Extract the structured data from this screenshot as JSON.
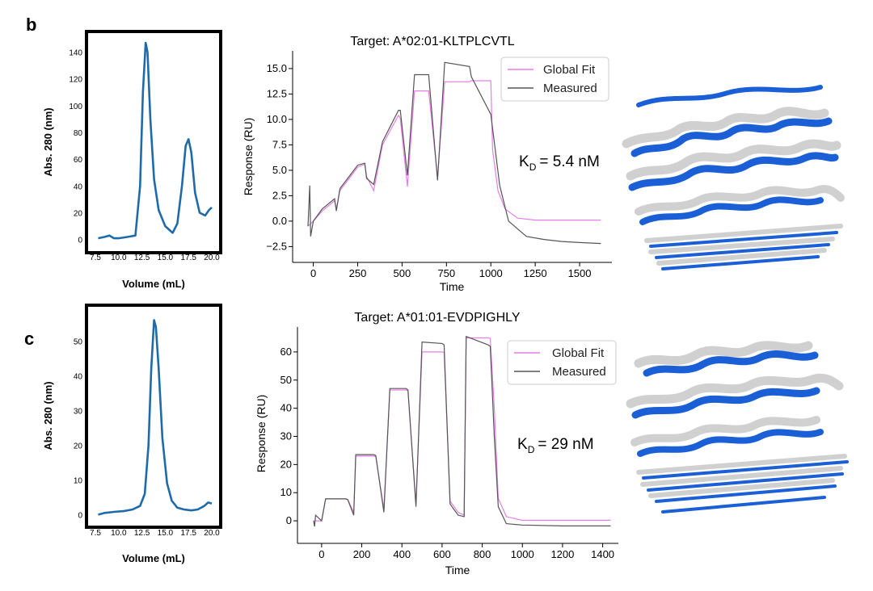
{
  "panels": [
    {
      "letter": "b",
      "kd_label": "K",
      "kd_sub": "D",
      "kd_value": "= 5.4 nM"
    },
    {
      "letter": "c",
      "kd_label": "K",
      "kd_sub": "D",
      "kd_value": "= 29 nM"
    }
  ],
  "colors": {
    "sec_line": "#1f6aa8",
    "fit_line": "#e67fe6",
    "measured_line": "#555555",
    "structure_blue": "#1a5fd6",
    "structure_grey": "#d0d0d0"
  },
  "chart_data": [
    {
      "id": "sec-b",
      "type": "line",
      "title": "",
      "xlabel": "Volume (mL)",
      "ylabel": "Abs. 280 (nm)",
      "xlim": [
        7.5,
        20.0
      ],
      "ylim": [
        -5,
        150
      ],
      "xticks": [
        "7.5",
        "10.0",
        "12.5",
        "15.0",
        "17.5",
        "20.0"
      ],
      "yticks": [
        "0",
        "20",
        "40",
        "60",
        "80",
        "100",
        "120",
        "140"
      ],
      "series": [
        {
          "name": "SEC trace",
          "x": [
            7.8,
            8.5,
            9.0,
            9.5,
            10.0,
            11.0,
            11.8,
            12.3,
            12.6,
            12.9,
            13.1,
            13.4,
            13.8,
            14.3,
            15.0,
            15.8,
            16.3,
            16.8,
            17.2,
            17.5,
            17.8,
            18.2,
            18.7,
            19.3,
            19.7,
            20.0
          ],
          "y": [
            1,
            2,
            3,
            1,
            1,
            2,
            3,
            40,
            110,
            147,
            140,
            90,
            45,
            22,
            10,
            5,
            12,
            40,
            70,
            75,
            65,
            35,
            20,
            18,
            22,
            24
          ]
        }
      ]
    },
    {
      "id": "spr-b",
      "type": "line",
      "title": "Target: A*02:01-KLTPLCVTL",
      "xlabel": "Time",
      "ylabel": "Response (RU)",
      "xlim": [
        -80,
        1650
      ],
      "ylim": [
        -3.5,
        16.5
      ],
      "xticks": [
        "0",
        "250",
        "500",
        "750",
        "1000",
        "1250",
        "1500"
      ],
      "yticks": [
        "−2.5",
        "0.0",
        "2.5",
        "5.0",
        "7.5",
        "10.0",
        "12.5",
        "15.0"
      ],
      "legend": [
        "Global Fit",
        "Measured"
      ],
      "legend_position": "top-right",
      "series": [
        {
          "name": "Global Fit",
          "x": [
            -30,
            0,
            50,
            120,
            130,
            150,
            250,
            290,
            300,
            340,
            390,
            480,
            490,
            530,
            570,
            640,
            650,
            700,
            740,
            880,
            890,
            1000,
            1010,
            1040,
            1080,
            1150,
            1250,
            1620
          ],
          "y": [
            -0.5,
            0.0,
            1.0,
            2.0,
            1.2,
            3.0,
            5.3,
            5.6,
            4.4,
            3.0,
            7.5,
            10.4,
            10.1,
            3.4,
            12.8,
            12.8,
            12.8,
            4.3,
            13.7,
            13.7,
            13.8,
            13.8,
            7.0,
            3.0,
            1.2,
            0.3,
            0.1,
            0.1
          ]
        },
        {
          "name": "Measured",
          "x": [
            -30,
            -20,
            -15,
            0,
            50,
            120,
            130,
            150,
            250,
            290,
            300,
            340,
            390,
            480,
            490,
            530,
            570,
            640,
            650,
            700,
            740,
            880,
            890,
            1000,
            1050,
            1100,
            1200,
            1300,
            1400,
            1500,
            1620
          ],
          "y": [
            -0.5,
            3.5,
            -1.5,
            0.0,
            1.2,
            2.2,
            1.0,
            3.2,
            5.5,
            5.7,
            4.2,
            3.6,
            7.8,
            10.9,
            10.9,
            4.5,
            14.4,
            14.4,
            14.4,
            4.0,
            15.6,
            15.2,
            14.2,
            10.5,
            3.5,
            0.0,
            -1.5,
            -1.8,
            -2.0,
            -2.1,
            -2.2
          ]
        }
      ]
    },
    {
      "id": "sec-c",
      "type": "line",
      "title": "",
      "xlabel": "Volume (mL)",
      "ylabel": "Abs. 280 (nm)",
      "xlim": [
        7.5,
        20.0
      ],
      "ylim": [
        -2,
        58
      ],
      "xticks": [
        "7.5",
        "10.0",
        "12.5",
        "15.0",
        "17.5",
        "20.0"
      ],
      "yticks": [
        "0",
        "10",
        "20",
        "30",
        "40",
        "50"
      ],
      "series": [
        {
          "name": "SEC trace",
          "x": [
            7.8,
            8.5,
            9.5,
            10.5,
            11.5,
            12.3,
            12.8,
            13.2,
            13.5,
            13.8,
            14.0,
            14.3,
            14.7,
            15.2,
            15.7,
            16.3,
            17.0,
            17.8,
            18.5,
            19.2,
            19.6,
            20.0
          ],
          "y": [
            0,
            0.5,
            0.8,
            1,
            1.5,
            2.5,
            6,
            20,
            42,
            56,
            54,
            42,
            22,
            9,
            4,
            2,
            1.5,
            1.2,
            1.5,
            2.5,
            3.5,
            3.2
          ]
        }
      ]
    },
    {
      "id": "spr-c",
      "type": "line",
      "title": "Target: A*01:01-EVDPIGHLY",
      "xlabel": "Time",
      "ylabel": "Response (RU)",
      "xlim": [
        -80,
        1450
      ],
      "ylim": [
        -6,
        68
      ],
      "xticks": [
        "0",
        "200",
        "400",
        "600",
        "800",
        "1000",
        "1200",
        "1400"
      ],
      "yticks": [
        "0",
        "10",
        "20",
        "30",
        "40",
        "50",
        "60"
      ],
      "legend": [
        "Global Fit",
        "Measured"
      ],
      "legend_position": "top-right",
      "series": [
        {
          "name": "Global Fit",
          "x": [
            -40,
            0,
            20,
            120,
            130,
            160,
            170,
            260,
            270,
            310,
            340,
            420,
            430,
            470,
            500,
            600,
            610,
            640,
            680,
            710,
            720,
            830,
            840,
            860,
            880,
            920,
            1000,
            1440
          ],
          "y": [
            0,
            0,
            7.8,
            7.8,
            7.6,
            3.0,
            23.0,
            23.0,
            22.8,
            4.0,
            46.5,
            46.5,
            46.3,
            6.0,
            60.0,
            60.0,
            59.8,
            7.0,
            3.0,
            2.0,
            65.0,
            65.0,
            64.8,
            40.0,
            8.0,
            1.5,
            0.2,
            0.2
          ]
        },
        {
          "name": "Measured",
          "x": [
            -40,
            -35,
            -30,
            0,
            20,
            120,
            130,
            160,
            170,
            260,
            270,
            310,
            340,
            420,
            430,
            470,
            500,
            600,
            610,
            640,
            680,
            710,
            720,
            830,
            840,
            860,
            880,
            920,
            1000,
            1200,
            1440
          ],
          "y": [
            0,
            -2,
            2,
            0,
            7.8,
            7.8,
            7.5,
            2.0,
            23.5,
            23.5,
            23.2,
            3.0,
            47.0,
            47.0,
            46.5,
            5.0,
            63.5,
            63.0,
            62.5,
            6.0,
            2.0,
            1.5,
            65.5,
            62.5,
            62.0,
            30.0,
            5.0,
            -1.0,
            -1.5,
            -1.8,
            -1.8
          ]
        }
      ]
    }
  ]
}
